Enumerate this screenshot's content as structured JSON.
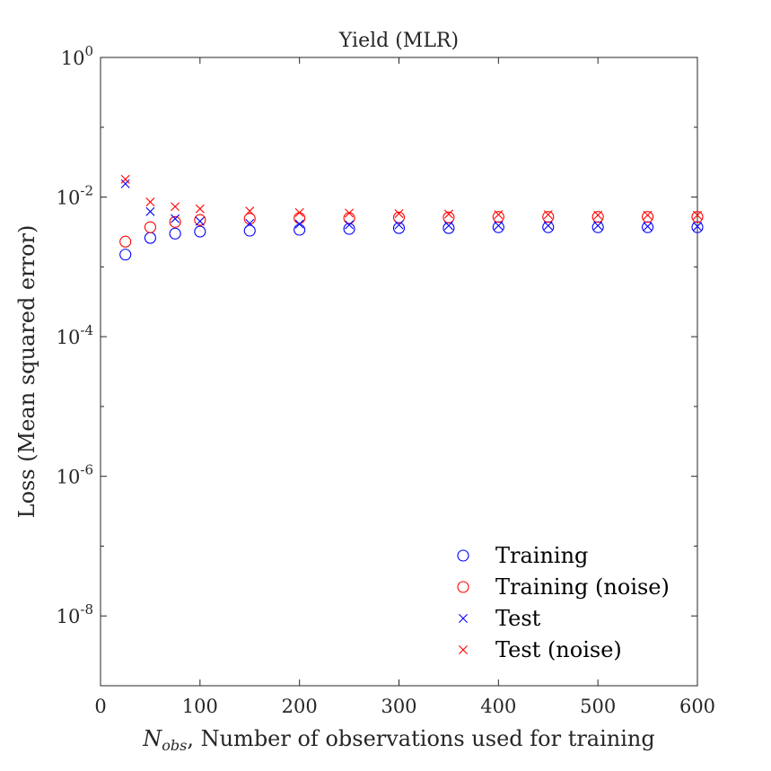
{
  "chart_data": {
    "type": "scatter",
    "title": "Yield (MLR)",
    "xlabel": "N_obs, Number of observations used for training",
    "xlabel_parts": {
      "symbol": "N",
      "subscript": "obs",
      "rest": ", Number of observations used for training"
    },
    "ylabel": "Loss (Mean squared error)",
    "xlim": [
      0,
      600
    ],
    "ylim": [
      1e-09,
      1
    ],
    "yscale": "log",
    "grid": false,
    "legend_position": "bottom-right",
    "x_ticks": [
      0,
      100,
      200,
      300,
      400,
      500,
      600
    ],
    "x_tick_labels": [
      "0",
      "100",
      "200",
      "300",
      "400",
      "500",
      "600"
    ],
    "y_ticks": [
      1e-08,
      1e-06,
      0.0001,
      0.01,
      1
    ],
    "y_tick_labels": [
      {
        "base": "10",
        "exp": "-8"
      },
      {
        "base": "10",
        "exp": "-6"
      },
      {
        "base": "10",
        "exp": "-4"
      },
      {
        "base": "10",
        "exp": "-2"
      },
      {
        "base": "10",
        "exp": "0"
      }
    ],
    "x": [
      25,
      50,
      75,
      100,
      150,
      200,
      250,
      300,
      350,
      400,
      450,
      500,
      550,
      600
    ],
    "series": [
      {
        "name": "Training",
        "marker": "circle",
        "color": "#0000ff",
        "values": [
          0.0015,
          0.0026,
          0.003,
          0.0032,
          0.0033,
          0.0034,
          0.0035,
          0.0036,
          0.0036,
          0.0037,
          0.0037,
          0.0037,
          0.0037,
          0.0037
        ]
      },
      {
        "name": "Training (noise)",
        "marker": "circle",
        "color": "#ff0000",
        "values": [
          0.0023,
          0.0037,
          0.0044,
          0.0047,
          0.0049,
          0.005,
          0.005,
          0.0051,
          0.0051,
          0.0052,
          0.0052,
          0.0052,
          0.0052,
          0.0052
        ]
      },
      {
        "name": "Test",
        "marker": "x",
        "color": "#0000ff",
        "values": [
          0.0155,
          0.0062,
          0.0049,
          0.0045,
          0.0042,
          0.0041,
          0.004,
          0.004,
          0.0039,
          0.0039,
          0.0039,
          0.0039,
          0.0038,
          0.0038
        ]
      },
      {
        "name": "Test (noise)",
        "marker": "x",
        "color": "#ff0000",
        "values": [
          0.018,
          0.0085,
          0.0073,
          0.0068,
          0.0063,
          0.006,
          0.0059,
          0.0058,
          0.0057,
          0.0056,
          0.0056,
          0.0055,
          0.0055,
          0.0055
        ]
      }
    ]
  }
}
